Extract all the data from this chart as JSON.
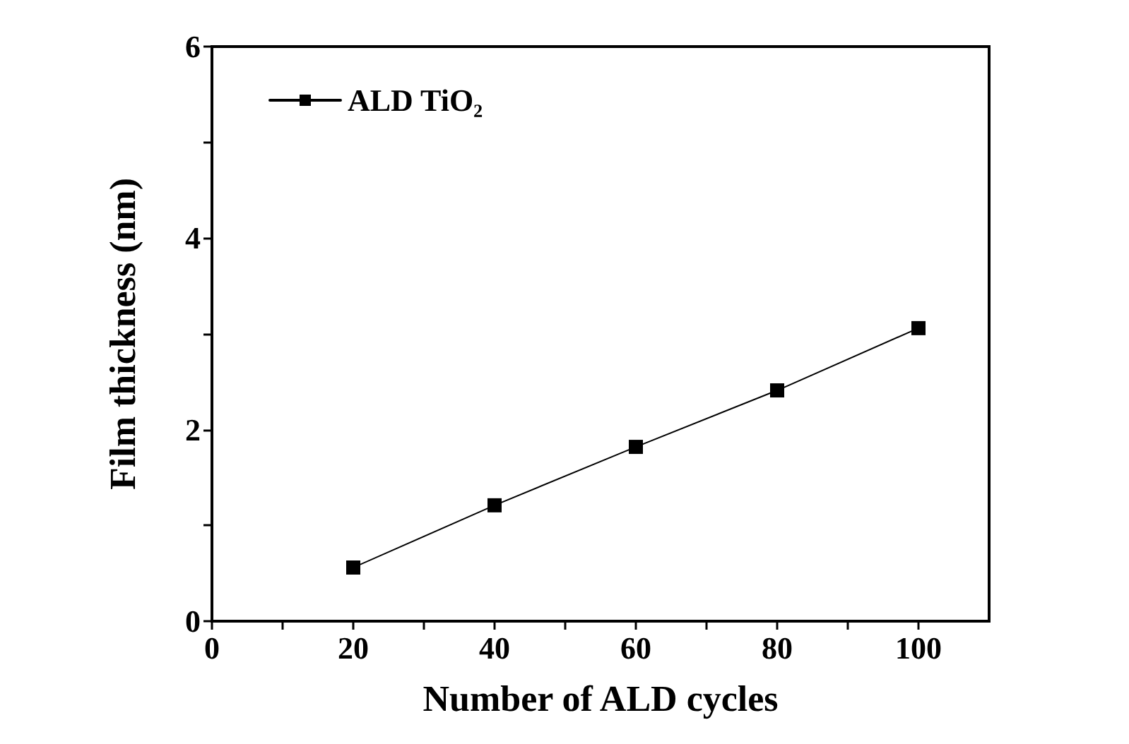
{
  "chart_data": {
    "type": "line",
    "xlabel": "Number of ALD cycles",
    "ylabel": "Film thickness (nm)",
    "x": [
      20,
      40,
      60,
      80,
      100
    ],
    "series": [
      {
        "name": "ALD TiO₂",
        "color": "#000000",
        "values": [
          0.56,
          1.21,
          1.82,
          2.41,
          3.06
        ]
      }
    ],
    "xlim": [
      0,
      110
    ],
    "xticks": [
      0,
      {
        "value": 10,
        "label": null
      },
      20,
      {
        "value": 30,
        "label": null
      },
      40,
      {
        "value": 50,
        "label": null
      },
      60,
      {
        "value": 70,
        "label": null
      },
      80,
      {
        "value": 90,
        "label": null
      },
      100
    ],
    "ylim": [
      0,
      6
    ],
    "yticks": [
      0,
      {
        "value": 1,
        "label": null
      },
      2,
      {
        "value": 3,
        "label": null
      },
      4,
      {
        "value": 5,
        "label": null
      },
      6
    ],
    "legend": "top left",
    "grid": false,
    "marker": "square",
    "line_style": "solid"
  }
}
